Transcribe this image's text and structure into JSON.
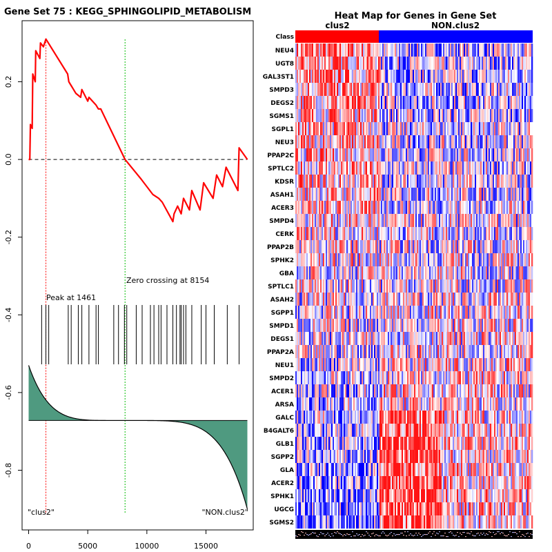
{
  "left_panel": {
    "title": "Gene Set  75 : KEGG_SPHINGOLIPID_METABOLISM",
    "peak_label": "Peak at 1461",
    "zero_label": "Zero crossing at 8154",
    "phenotype_left": "\"clus2\"",
    "phenotype_right": "\"NON.clus2\""
  },
  "right_panel": {
    "title": "Heat Map for Genes in Gene Set",
    "class_label": "Class",
    "class_left": "clus2",
    "class_right": "NON.clus2",
    "genes": [
      "NEU4",
      "UGT8",
      "GAL3ST1",
      "SMPD3",
      "DEGS2",
      "SGMS1",
      "SGPL1",
      "NEU3",
      "PPAP2C",
      "SPTLC2",
      "KDSR",
      "ASAH1",
      "ACER3",
      "SMPD4",
      "CERK",
      "PPAP2B",
      "SPHK2",
      "GBA",
      "SPTLC1",
      "ASAH2",
      "SGPP1",
      "SMPD1",
      "DEGS1",
      "PPAP2A",
      "NEU1",
      "SMPD2",
      "ACER1",
      "ARSA",
      "GALC",
      "B4GALT6",
      "GLB1",
      "SGPP2",
      "GLA",
      "ACER2",
      "SPHK1",
      "UGCG",
      "SGMS2"
    ]
  },
  "colors": {
    "curve": "#ff0000",
    "peak_line": "#ff0000",
    "zero_line": "#00bb00",
    "fill": "#4f9a80",
    "class_pos": "#ff0000",
    "class_neg": "#0000ff"
  },
  "chart_data": {
    "type": "line",
    "title": "Gene Set  75 : KEGG_SPHINGOLIPID_METABOLISM",
    "xlim": [
      0,
      18500
    ],
    "ylim": [
      -0.93,
      0.33
    ],
    "x_ticks": [
      0,
      5000,
      10000,
      15000
    ],
    "y_ticks": [
      0.2,
      0.0,
      -0.2,
      -0.4,
      -0.6,
      -0.8
    ],
    "y_tick_labels": [
      "0.2",
      "0.0",
      "-0.2",
      "-0.4",
      "-0.6",
      "-0.8"
    ],
    "peak_x": 1461,
    "zero_crossing_x": 8154,
    "running_es": [
      [
        0,
        0.0
      ],
      [
        100,
        0.0
      ],
      [
        150,
        0.09
      ],
      [
        300,
        0.08
      ],
      [
        350,
        0.22
      ],
      [
        560,
        0.2
      ],
      [
        600,
        0.28
      ],
      [
        950,
        0.26
      ],
      [
        1000,
        0.3
      ],
      [
        1250,
        0.29
      ],
      [
        1461,
        0.31
      ],
      [
        3300,
        0.22
      ],
      [
        3400,
        0.2
      ],
      [
        3600,
        0.19
      ],
      [
        4000,
        0.17
      ],
      [
        4400,
        0.16
      ],
      [
        4500,
        0.18
      ],
      [
        5000,
        0.15
      ],
      [
        5100,
        0.16
      ],
      [
        5700,
        0.14
      ],
      [
        5900,
        0.13
      ],
      [
        6100,
        0.13
      ],
      [
        8154,
        0.0
      ],
      [
        9500,
        -0.05
      ],
      [
        10500,
        -0.09
      ],
      [
        11000,
        -0.1
      ],
      [
        11300,
        -0.11
      ],
      [
        12200,
        -0.16
      ],
      [
        12300,
        -0.14
      ],
      [
        12600,
        -0.12
      ],
      [
        12900,
        -0.14
      ],
      [
        13100,
        -0.1
      ],
      [
        13600,
        -0.13
      ],
      [
        13800,
        -0.08
      ],
      [
        14500,
        -0.13
      ],
      [
        14800,
        -0.06
      ],
      [
        15600,
        -0.1
      ],
      [
        15900,
        -0.04
      ],
      [
        16400,
        -0.07
      ],
      [
        16700,
        -0.02
      ],
      [
        17700,
        -0.08
      ],
      [
        17800,
        0.03
      ],
      [
        18500,
        0.0
      ]
    ],
    "hit_positions": [
      1100,
      1461,
      1700,
      3350,
      3600,
      4200,
      4500,
      5100,
      5700,
      5900,
      7200,
      7600,
      8100,
      8300,
      9100,
      9600,
      10300,
      10600,
      11000,
      11200,
      11700,
      12200,
      12500,
      12800,
      12900,
      13100,
      13300,
      13800,
      14600,
      15000,
      15700,
      16800,
      17800
    ],
    "ranked_metric_profile": {
      "baseline_y": -0.672,
      "start_value": -0.53,
      "end_value": -0.9,
      "crossing_x": 8154
    }
  }
}
